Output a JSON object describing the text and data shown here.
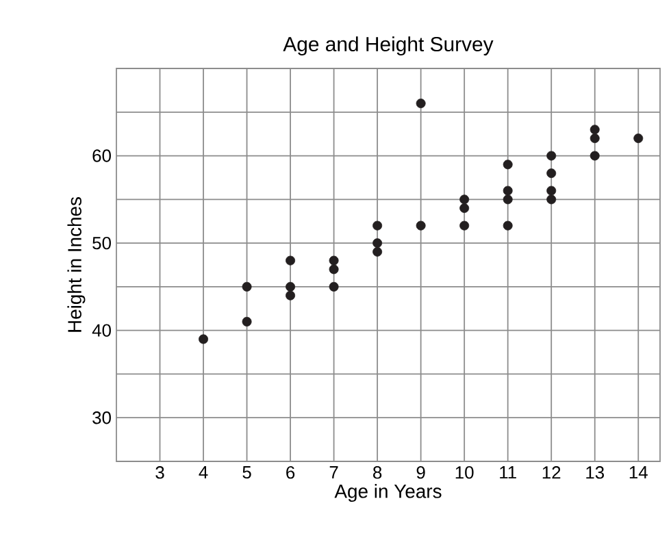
{
  "chart_data": {
    "type": "scatter",
    "title": "Age and Height Survey",
    "xlabel": "Age in Years",
    "ylabel": "Height in Inches",
    "series": [
      {
        "color": "#231f20",
        "x": [
          4,
          5,
          5,
          6,
          6,
          6,
          7,
          7,
          7,
          8,
          8,
          8,
          9,
          9,
          10,
          10,
          10,
          11,
          11,
          11,
          11,
          12,
          12,
          12,
          12,
          13,
          13,
          13,
          14
        ],
        "values": [
          39,
          45,
          41,
          48,
          45,
          44,
          48,
          47,
          45,
          52,
          50,
          49,
          66,
          52,
          55,
          54,
          52,
          59,
          56,
          55,
          52,
          60,
          58,
          56,
          55,
          63,
          62,
          60,
          62
        ]
      }
    ],
    "grid": true,
    "xlim": [
      2,
      14.5
    ],
    "ylim": [
      25,
      70
    ],
    "xticks": [
      3,
      4,
      5,
      6,
      7,
      8,
      9,
      10,
      11,
      12,
      13,
      14
    ],
    "yticks": [
      30,
      {
        "value": 35,
        "label": null
      },
      40,
      {
        "value": 45,
        "label": null
      },
      50,
      {
        "value": 55,
        "label": null
      },
      60,
      {
        "value": 65,
        "label": null
      }
    ]
  }
}
